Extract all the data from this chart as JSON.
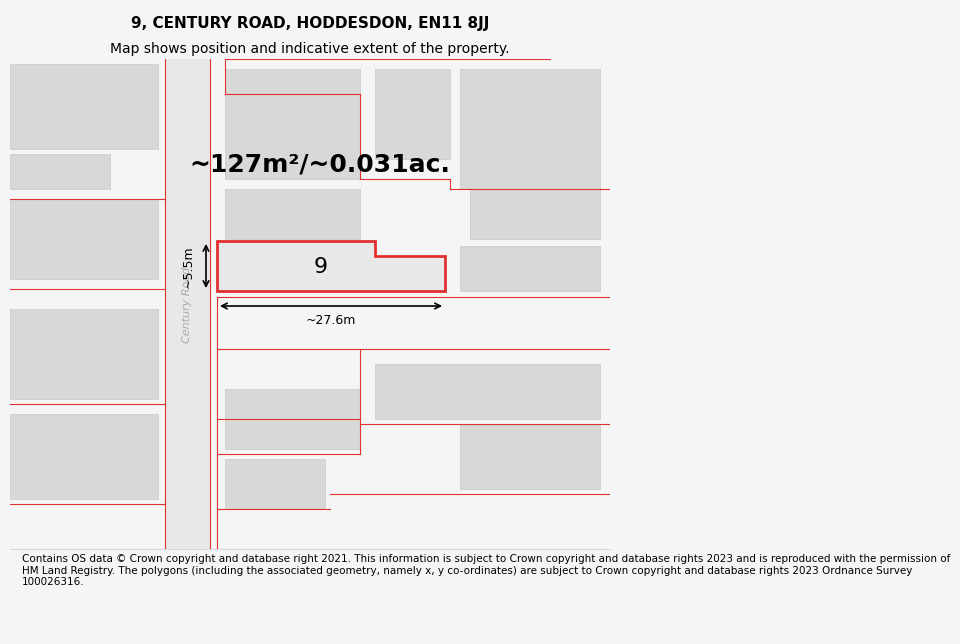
{
  "title": "9, CENTURY ROAD, HODDESDON, EN11 8JJ",
  "subtitle": "Map shows position and indicative extent of the property.",
  "area_label": "~127m²/~0.031ac.",
  "plot_number": "9",
  "width_label": "~27.6m",
  "height_label": "~5.5m",
  "footer": "Contains OS data © Crown copyright and database right 2021. This information is subject to Crown copyright and database rights 2023 and is reproduced with the permission of\nHM Land Registry. The polygons (including the associated geometry, namely x, y co-ordinates) are subject to Crown copyright and database rights 2023 Ordnance Survey\n100026316.",
  "bg_color": "#f5f5f5",
  "map_bg": "#ffffff",
  "block_color": "#d8d8d8",
  "block_outline": "#c8c8c8",
  "red_line_color": "#e03030",
  "road_label": "Century Road",
  "title_fontsize": 11,
  "subtitle_fontsize": 10,
  "footer_fontsize": 7.5
}
